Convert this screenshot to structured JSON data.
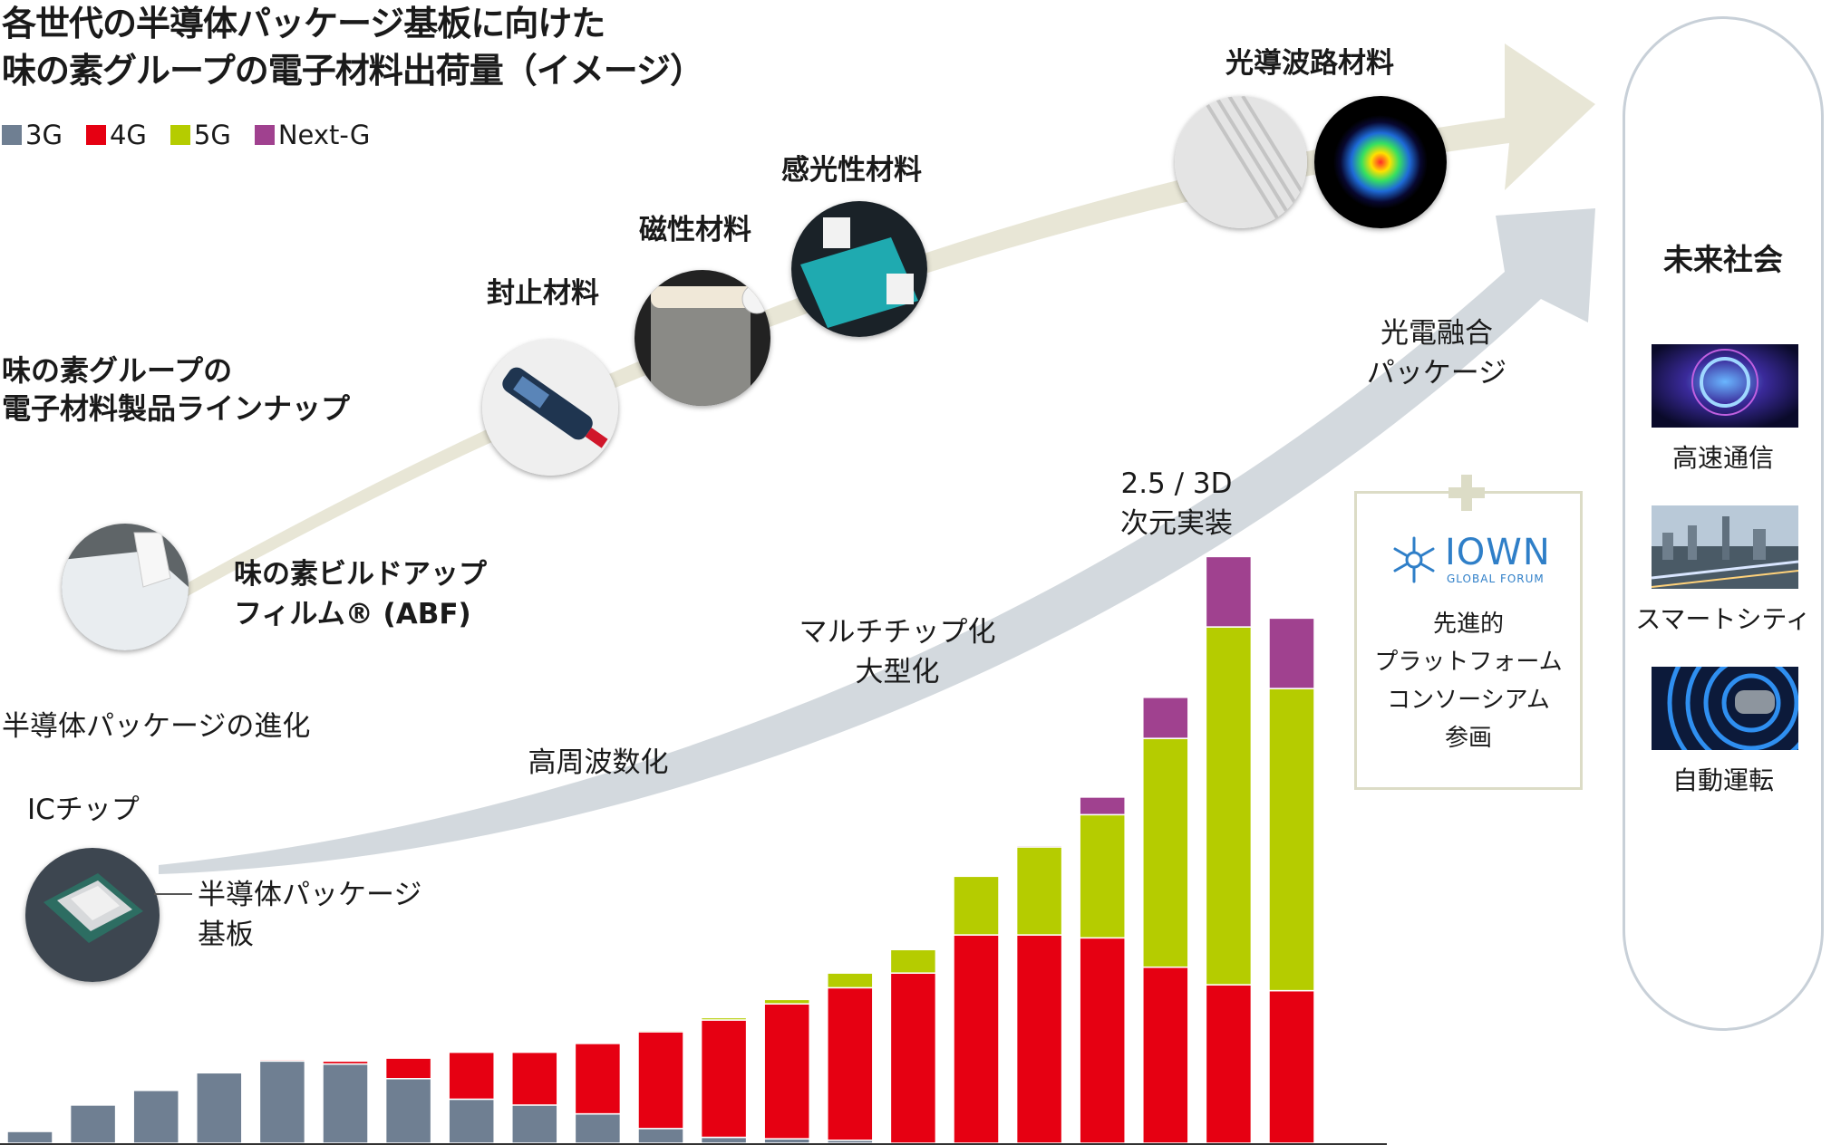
{
  "title": {
    "line1": "各世代の半導体パッケージ基板に向けた",
    "line2": "味の素グループの電子材料出荷量（イメージ）"
  },
  "legend": [
    {
      "label": "3G",
      "color": "#6f7f92"
    },
    {
      "label": "4G",
      "color": "#e60012"
    },
    {
      "label": "5G",
      "color": "#b5cc00"
    },
    {
      "label": "Next-G",
      "color": "#a0418f"
    }
  ],
  "lineup": {
    "heading_line1": "味の素グループの",
    "heading_line2": "電子材料製品ラインナップ",
    "products": [
      {
        "name": "味の素ビルドアップ",
        "name2": "フィルム® (ABF)",
        "icon": "abf-film-photo"
      },
      {
        "name": "封止材料",
        "icon": "sealant-syringe-photo"
      },
      {
        "name": "磁性材料",
        "icon": "magnetic-film-photo"
      },
      {
        "name": "感光性材料",
        "icon": "photosensitive-film-photo"
      },
      {
        "name": "光導波路材料",
        "icon": "optical-waveguide-photos"
      }
    ]
  },
  "evolution": {
    "heading": "半導体パッケージの進化",
    "ic_chip": "ICチップ",
    "substrate_line1": "半導体パッケージ",
    "substrate_line2": "基板",
    "stages": [
      {
        "line1": "高周波数化"
      },
      {
        "line1": "マルチチップ化",
        "line2": "大型化"
      },
      {
        "line1": "2.5 / 3D",
        "line2": "次元実装"
      },
      {
        "line1": "光電融合",
        "line2": "パッケージ"
      }
    ]
  },
  "iown": {
    "logo_main": "IOWN",
    "logo_sub": "GLOBAL FORUM",
    "lines": [
      "先進的",
      "プラットフォーム",
      "コンソーシアム",
      "参画"
    ]
  },
  "future": {
    "title": "未来社会",
    "items": [
      {
        "label": "高速通信",
        "icon": "6g-network-image"
      },
      {
        "label": "スマートシティ",
        "icon": "smart-city-image"
      },
      {
        "label": "自動運転",
        "icon": "autonomous-car-image"
      }
    ]
  },
  "chart_data": {
    "type": "bar",
    "stacked": true,
    "categories": [
      "",
      "",
      "",
      "",
      "",
      "",
      "",
      "",
      "",
      "",
      "",
      "",
      "",
      "",
      "",
      "",
      "",
      "",
      "",
      "",
      ""
    ],
    "series": [
      {
        "name": "3G",
        "color": "#6f7f92",
        "values": [
          4,
          13,
          18,
          24,
          28,
          27,
          22,
          15,
          13,
          10,
          5,
          2,
          1.5,
          1,
          0,
          0,
          0,
          0,
          0,
          0,
          0
        ]
      },
      {
        "name": "4G",
        "color": "#e60012",
        "values": [
          0,
          0,
          0,
          0,
          0.5,
          1,
          7,
          16,
          18,
          24,
          33,
          40,
          46,
          52,
          58,
          71,
          71,
          70,
          60,
          54,
          52
        ]
      },
      {
        "name": "5G",
        "color": "#b5cc00",
        "values": [
          0,
          0,
          0,
          0,
          0,
          0,
          0,
          0,
          0,
          0,
          0.5,
          0.8,
          1.5,
          5,
          8,
          20,
          30,
          42,
          78,
          122,
          103
        ]
      },
      {
        "name": "Next-G",
        "color": "#a0418f",
        "values": [
          0,
          0,
          0,
          0,
          0,
          0,
          0,
          0,
          0,
          0,
          0,
          0,
          0,
          0,
          0,
          0,
          0.5,
          6,
          14,
          24,
          24
        ]
      }
    ],
    "ylim": [
      0,
      210
    ],
    "grid": false,
    "legend_position": "top-left",
    "title": "",
    "xlabel": "",
    "ylabel": ""
  }
}
